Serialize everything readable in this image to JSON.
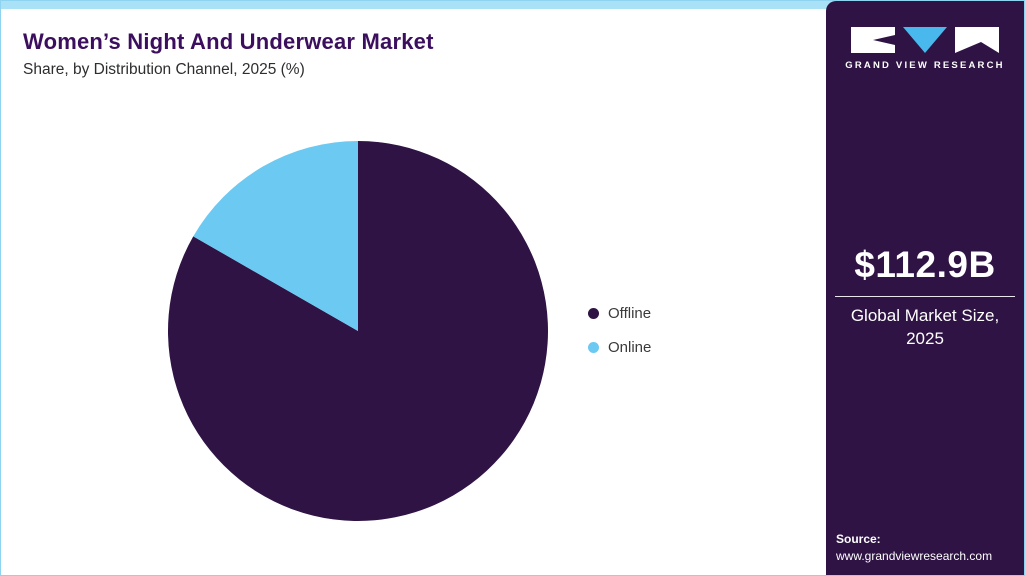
{
  "header": {
    "title": "Women’s Night And Underwear Market",
    "subtitle": "Share, by Distribution Channel, 2025 (%)"
  },
  "chart_data": {
    "type": "pie",
    "title": "Women’s Night And Underwear Market Share, by Distribution Channel, 2025 (%)",
    "labels": [
      "Offline",
      "Online"
    ],
    "values": [
      83.3,
      16.7
    ],
    "unit": "%",
    "colors": [
      "#2e1344",
      "#6bc9f2"
    ],
    "start_angle_deg": 0,
    "direction": "clockwise",
    "legend_position": "right"
  },
  "sidebar": {
    "logo_text": "GRAND VIEW RESEARCH",
    "market_size": "$112.9B",
    "market_size_label_line1": "Global Market Size,",
    "market_size_label_line2": "2025",
    "source_label": "Source:",
    "source_url": "www.grandviewresearch.com"
  },
  "colors": {
    "top_bar": "#a9e1f6",
    "border": "#8ed4f0",
    "sidebar_bg": "#2e1344",
    "title": "#3c0e5e",
    "offline": "#2e1344",
    "online": "#6bc9f2",
    "logo_triangle": "#49b8ec"
  }
}
